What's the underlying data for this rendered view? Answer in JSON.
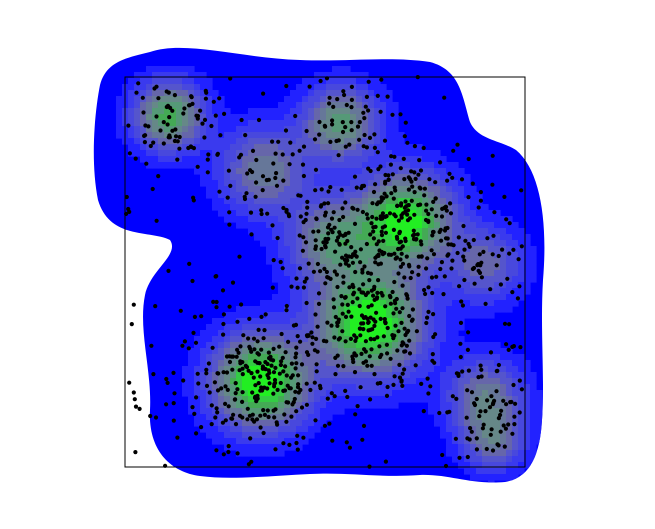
{
  "chart_data": {
    "type": "heatmap",
    "subtype": "kernel-density-contour-with-scatter",
    "title": "",
    "xlabel": "",
    "ylabel": "",
    "axes_visible": false,
    "grid": false,
    "legend": "none",
    "xlim": [
      0,
      1
    ],
    "ylim": [
      0,
      1
    ],
    "colormap": [
      "#0000ff",
      "#2222ff",
      "#3a3aee",
      "#4848dd",
      "#5555cc",
      "#6666aa",
      "#667799",
      "#668888",
      "#559977",
      "#44aa55",
      "#33cc44",
      "#22ee22"
    ],
    "point_color": "#000000",
    "density_peaks": [
      {
        "x": 0.34,
        "y": 0.22,
        "weight": 1.0,
        "spread": 0.075
      },
      {
        "x": 0.61,
        "y": 0.37,
        "weight": 1.0,
        "spread": 0.085
      },
      {
        "x": 0.7,
        "y": 0.63,
        "weight": 0.95,
        "spread": 0.075
      },
      {
        "x": 0.52,
        "y": 0.58,
        "weight": 0.55,
        "spread": 0.07
      },
      {
        "x": 0.11,
        "y": 0.9,
        "weight": 0.7,
        "spread": 0.055
      },
      {
        "x": 0.54,
        "y": 0.88,
        "weight": 0.6,
        "spread": 0.06
      },
      {
        "x": 0.35,
        "y": 0.76,
        "weight": 0.45,
        "spread": 0.07
      },
      {
        "x": 0.9,
        "y": 0.18,
        "weight": 0.45,
        "spread": 0.06
      },
      {
        "x": 0.9,
        "y": 0.52,
        "weight": 0.35,
        "spread": 0.06
      },
      {
        "x": 0.92,
        "y": 0.07,
        "weight": 0.4,
        "spread": 0.05
      }
    ]
  }
}
